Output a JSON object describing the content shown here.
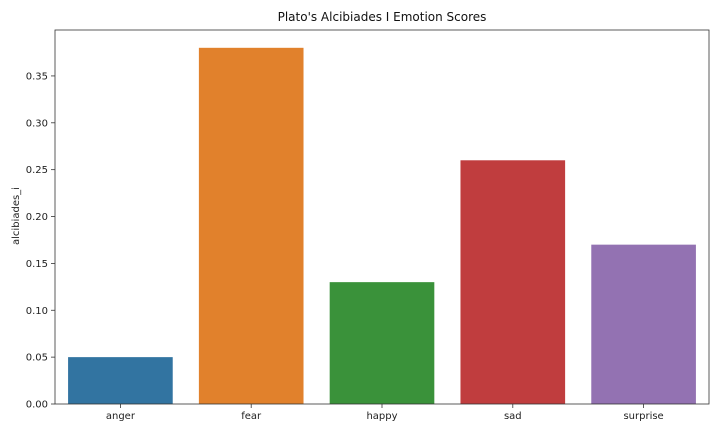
{
  "chart_data": {
    "type": "bar",
    "title": "Plato's Alcibiades I Emotion Scores",
    "xlabel": "",
    "ylabel": "alcibiades_i",
    "categories": [
      "anger",
      "fear",
      "happy",
      "sad",
      "surprise"
    ],
    "values": [
      0.05,
      0.38,
      0.13,
      0.26,
      0.17
    ],
    "colors": [
      "#3274a1",
      "#e1812c",
      "#3a923a",
      "#c03d3e",
      "#9372b2"
    ],
    "ylim": [
      0,
      0.399
    ],
    "yticks": [
      0.0,
      0.05,
      0.1,
      0.15,
      0.2,
      0.25,
      0.3,
      0.35
    ],
    "ytick_labels": [
      "0.00",
      "0.05",
      "0.10",
      "0.15",
      "0.20",
      "0.25",
      "0.30",
      "0.35"
    ],
    "grid": false,
    "legend": "none"
  }
}
